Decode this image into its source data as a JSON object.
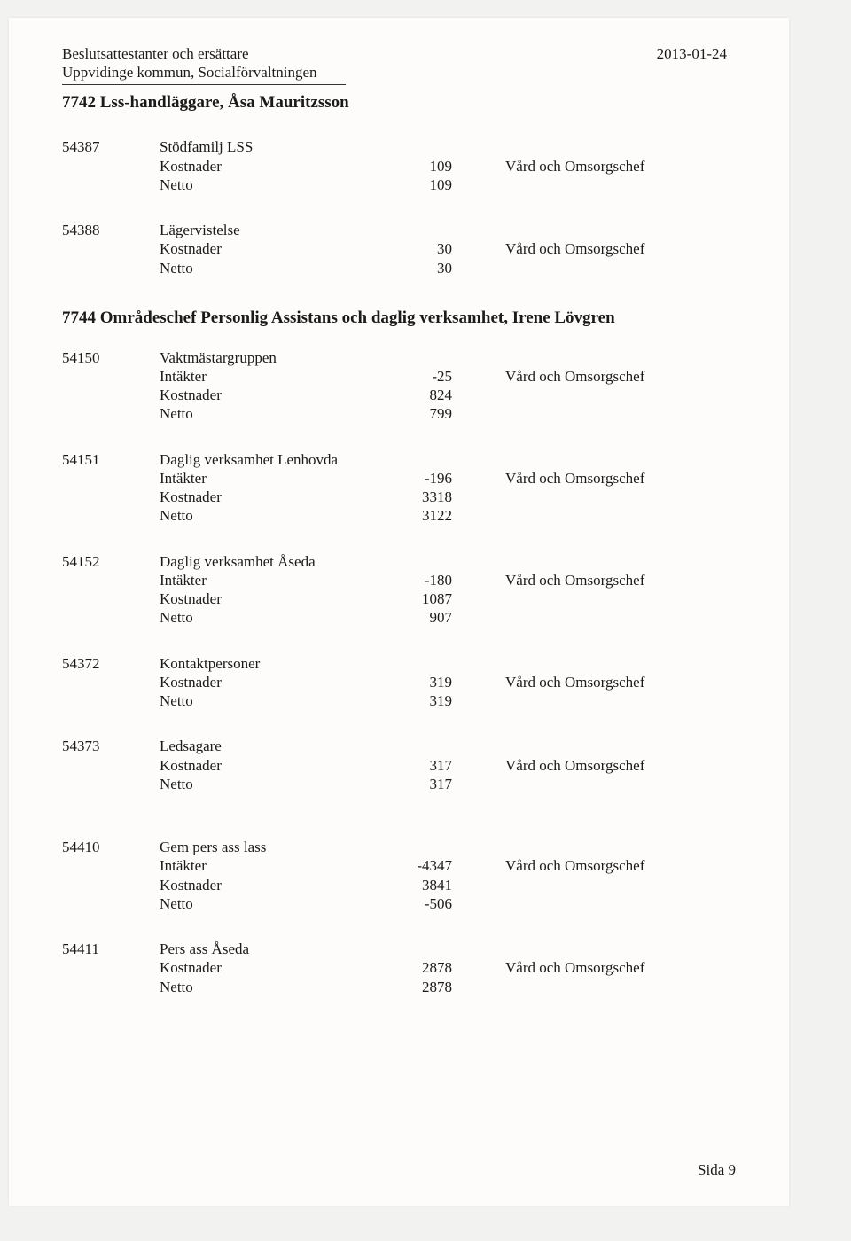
{
  "header": {
    "line1": "Beslutsattestanter och ersättare",
    "line2": "Uppvidinge kommun, Socialförvaltningen",
    "date": "2013-01-24"
  },
  "sections": [
    {
      "title": "7742 Lss-handläggare, Åsa Mauritzsson",
      "blocks": [
        {
          "code": "54387",
          "name": "Stödfamilj LSS",
          "lines": [
            {
              "label": "Kostnader",
              "value": "109",
              "resp": "Vård och Omsorgschef"
            },
            {
              "label": "Netto",
              "value": "109",
              "resp": ""
            }
          ]
        },
        {
          "code": "54388",
          "name": "Lägervistelse",
          "lines": [
            {
              "label": "Kostnader",
              "value": "30",
              "resp": "Vård och Omsorgschef"
            },
            {
              "label": "Netto",
              "value": "30",
              "resp": ""
            }
          ]
        }
      ]
    },
    {
      "title": "7744 Områdeschef Personlig Assistans och daglig verksamhet, Irene Lövgren",
      "blocks": [
        {
          "code": "54150",
          "name": "Vaktmästargruppen",
          "lines": [
            {
              "label": "Intäkter",
              "value": "-25",
              "resp": "Vård och Omsorgschef"
            },
            {
              "label": "Kostnader",
              "value": "824",
              "resp": ""
            },
            {
              "label": "Netto",
              "value": "799",
              "resp": ""
            }
          ]
        },
        {
          "code": "54151",
          "name": "Daglig verksamhet Lenhovda",
          "lines": [
            {
              "label": "Intäkter",
              "value": "-196",
              "resp": "Vård och Omsorgschef"
            },
            {
              "label": "Kostnader",
              "value": "3318",
              "resp": ""
            },
            {
              "label": "Netto",
              "value": "3122",
              "resp": ""
            }
          ]
        },
        {
          "code": "54152",
          "name": "Daglig verksamhet Åseda",
          "lines": [
            {
              "label": "Intäkter",
              "value": "-180",
              "resp": "Vård och Omsorgschef"
            },
            {
              "label": "Kostnader",
              "value": "1087",
              "resp": ""
            },
            {
              "label": "Netto",
              "value": "907",
              "resp": ""
            }
          ]
        },
        {
          "code": "54372",
          "name": "Kontaktpersoner",
          "lines": [
            {
              "label": "Kostnader",
              "value": "319",
              "resp": "Vård och Omsorgschef"
            },
            {
              "label": "Netto",
              "value": "319",
              "resp": ""
            }
          ]
        },
        {
          "code": "54373",
          "name": "Ledsagare",
          "lines": [
            {
              "label": "Kostnader",
              "value": "317",
              "resp": "Vård och Omsorgschef"
            },
            {
              "label": "Netto",
              "value": "317",
              "resp": ""
            }
          ]
        },
        {
          "code": "54410",
          "name": "Gem pers ass lass",
          "lines": [
            {
              "label": "Intäkter",
              "value": "-4347",
              "resp": "Vård och Omsorgschef"
            },
            {
              "label": "Kostnader",
              "value": "3841",
              "resp": ""
            },
            {
              "label": "Netto",
              "value": "-506",
              "resp": ""
            }
          ]
        },
        {
          "code": "54411",
          "name": "Pers ass Åseda",
          "lines": [
            {
              "label": "Kostnader",
              "value": "2878",
              "resp": "Vård och Omsorgschef"
            },
            {
              "label": "Netto",
              "value": "2878",
              "resp": ""
            }
          ]
        }
      ]
    }
  ],
  "footer": {
    "page": "Sida 9"
  }
}
